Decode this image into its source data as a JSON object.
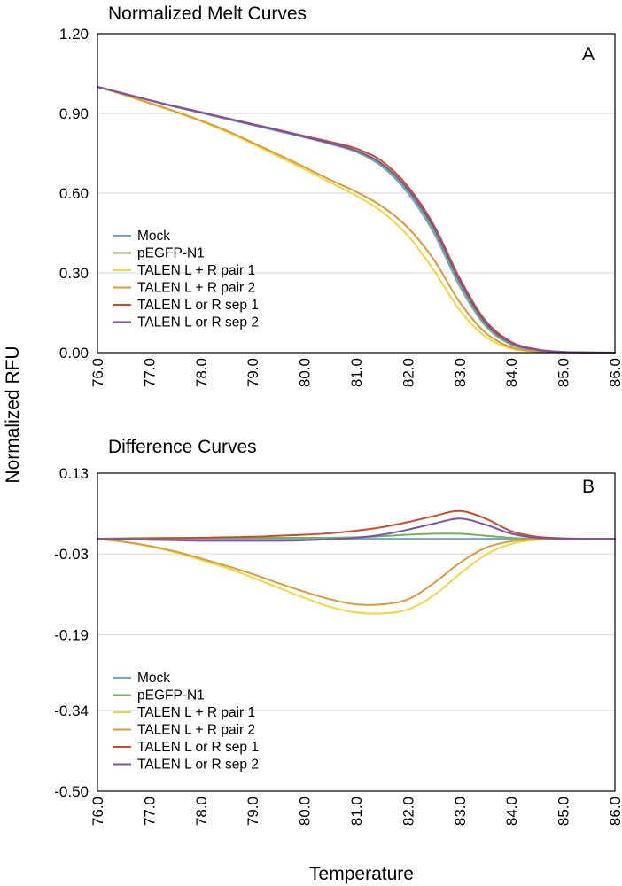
{
  "figure": {
    "ylabel": "Normalized RFU",
    "xlabel": "Temperature"
  },
  "chart_data": [
    {
      "type": "line",
      "title": "Normalized Melt Curves",
      "panel_label": "A",
      "xlabel": "Temperature",
      "ylabel": "Normalized RFU",
      "xlim": [
        76.0,
        86.0
      ],
      "ylim": [
        0.0,
        1.2
      ],
      "xticks": [
        "76.0",
        "77.0",
        "78.0",
        "79.0",
        "80.0",
        "81.0",
        "82.0",
        "83.0",
        "84.0",
        "85.0",
        "86.0"
      ],
      "yticks": [
        "0.00",
        "0.30",
        "0.60",
        "0.90",
        "1.20"
      ],
      "grid": true,
      "legend_position": "bottom-left",
      "x": [
        76,
        76.5,
        77,
        77.5,
        78,
        78.5,
        79,
        79.5,
        80,
        80.5,
        81,
        81.5,
        82,
        82.5,
        83,
        83.5,
        84,
        84.5,
        85,
        85.5,
        86
      ],
      "series": [
        {
          "name": "Mock",
          "color": "#6fa3dc",
          "values": [
            1.0,
            0.975,
            0.95,
            0.925,
            0.902,
            0.879,
            0.856,
            0.833,
            0.81,
            0.785,
            0.755,
            0.7,
            0.6,
            0.45,
            0.25,
            0.1,
            0.03,
            0.008,
            0.002,
            0.0005,
            0.0
          ]
        },
        {
          "name": "pEGFP-N1",
          "color": "#77b356",
          "values": [
            1.0,
            0.975,
            0.95,
            0.925,
            0.903,
            0.88,
            0.858,
            0.835,
            0.812,
            0.787,
            0.758,
            0.705,
            0.61,
            0.46,
            0.26,
            0.105,
            0.032,
            0.009,
            0.002,
            0.0005,
            0.0
          ]
        },
        {
          "name": "TALEN L + R pair 1",
          "color": "#f2d93b",
          "values": [
            1.0,
            0.97,
            0.938,
            0.905,
            0.87,
            0.83,
            0.785,
            0.738,
            0.69,
            0.64,
            0.59,
            0.53,
            0.44,
            0.31,
            0.16,
            0.06,
            0.015,
            0.004,
            0.001,
            0.0,
            0.0
          ]
        },
        {
          "name": "TALEN L + R pair 2",
          "color": "#dc9b3b",
          "values": [
            1.0,
            0.972,
            0.94,
            0.908,
            0.873,
            0.835,
            0.79,
            0.745,
            0.698,
            0.65,
            0.605,
            0.55,
            0.47,
            0.35,
            0.19,
            0.075,
            0.02,
            0.005,
            0.001,
            0.0,
            0.0
          ]
        },
        {
          "name": "TALEN L or R sep 1",
          "color": "#cf4a2b",
          "values": [
            1.0,
            0.975,
            0.95,
            0.927,
            0.905,
            0.882,
            0.86,
            0.838,
            0.815,
            0.793,
            0.768,
            0.72,
            0.625,
            0.48,
            0.28,
            0.12,
            0.04,
            0.012,
            0.003,
            0.0005,
            0.0
          ]
        },
        {
          "name": "TALEN L or R sep 2",
          "color": "#7b52a8",
          "values": [
            1.0,
            0.975,
            0.95,
            0.926,
            0.904,
            0.881,
            0.858,
            0.836,
            0.812,
            0.788,
            0.76,
            0.71,
            0.615,
            0.47,
            0.27,
            0.112,
            0.036,
            0.01,
            0.002,
            0.0005,
            0.0
          ]
        }
      ]
    },
    {
      "type": "line",
      "title": "Difference Curves",
      "panel_label": "B",
      "xlabel": "Temperature",
      "ylabel": "Normalized RFU",
      "xlim": [
        76.0,
        86.0
      ],
      "ylim": [
        -0.5,
        0.13
      ],
      "xticks": [
        "76.0",
        "77.0",
        "78.0",
        "79.0",
        "80.0",
        "81.0",
        "82.0",
        "83.0",
        "84.0",
        "85.0",
        "86.0"
      ],
      "yticks": [
        "0.13",
        "-0.03",
        "-0.19",
        "-0.34",
        "-0.50"
      ],
      "ytick_values": [
        0.13,
        -0.03,
        -0.19,
        -0.34,
        -0.5
      ],
      "grid": true,
      "legend_position": "bottom-left",
      "x": [
        76,
        76.5,
        77,
        77.5,
        78,
        78.5,
        79,
        79.5,
        80,
        80.5,
        81,
        81.5,
        82,
        82.5,
        83,
        83.5,
        84,
        84.5,
        85,
        85.5,
        86
      ],
      "series": [
        {
          "name": "Mock",
          "color": "#6fa3dc",
          "values": [
            0,
            0,
            0,
            0,
            0,
            0,
            0,
            0,
            0,
            0,
            0,
            0,
            0,
            0,
            0,
            0,
            0,
            0,
            0,
            0,
            0
          ]
        },
        {
          "name": "pEGFP-N1",
          "color": "#77b356",
          "values": [
            0,
            0.001,
            0.002,
            0.002,
            0.002,
            0.002,
            0.002,
            0.002,
            0.002,
            0.002,
            0.003,
            0.005,
            0.008,
            0.01,
            0.01,
            0.006,
            0.002,
            0.0,
            0.0,
            0.0,
            0.0
          ]
        },
        {
          "name": "TALEN L + R pair 1",
          "color": "#f2d93b",
          "values": [
            0,
            -0.006,
            -0.015,
            -0.027,
            -0.042,
            -0.058,
            -0.077,
            -0.097,
            -0.117,
            -0.135,
            -0.146,
            -0.148,
            -0.14,
            -0.112,
            -0.07,
            -0.032,
            -0.01,
            -0.002,
            0.0,
            0.0,
            0.0
          ]
        },
        {
          "name": "TALEN L + R pair 2",
          "color": "#dc9b3b",
          "values": [
            0,
            -0.006,
            -0.014,
            -0.025,
            -0.039,
            -0.054,
            -0.07,
            -0.088,
            -0.105,
            -0.12,
            -0.13,
            -0.13,
            -0.12,
            -0.088,
            -0.048,
            -0.018,
            -0.005,
            -0.001,
            0.0,
            0.0,
            0.0
          ]
        },
        {
          "name": "TALEN L or R sep 1",
          "color": "#cf4a2b",
          "values": [
            0,
            0.0,
            0.0,
            0.001,
            0.002,
            0.003,
            0.004,
            0.006,
            0.008,
            0.011,
            0.016,
            0.023,
            0.033,
            0.045,
            0.055,
            0.04,
            0.015,
            0.004,
            0.001,
            0.0,
            0.0
          ]
        },
        {
          "name": "TALEN L or R sep 2",
          "color": "#7b52a8",
          "values": [
            0,
            -0.001,
            -0.002,
            -0.003,
            -0.004,
            -0.004,
            -0.004,
            -0.004,
            -0.003,
            -0.001,
            0.002,
            0.008,
            0.018,
            0.03,
            0.04,
            0.028,
            0.01,
            0.002,
            0.0,
            0.0,
            0.0
          ]
        }
      ]
    }
  ]
}
